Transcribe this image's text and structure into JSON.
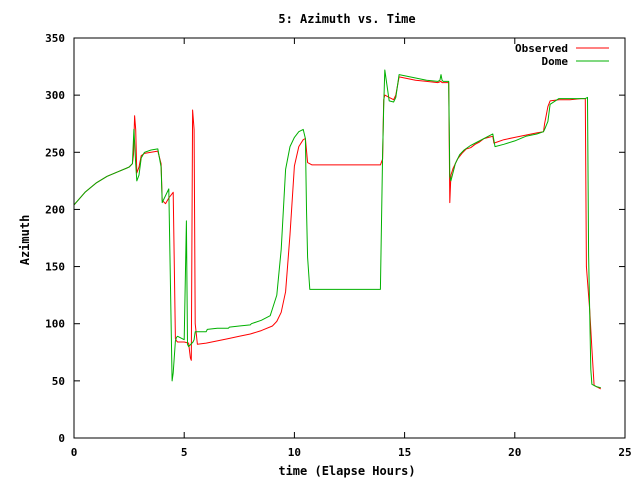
{
  "chart_data": {
    "type": "line",
    "title": "5: Azimuth vs. Time",
    "xlabel": "time (Elapse Hours)",
    "ylabel": "Azimuth",
    "xlim": [
      0,
      25
    ],
    "ylim": [
      0,
      350
    ],
    "xticks": [
      0,
      5,
      10,
      15,
      20,
      25
    ],
    "yticks": [
      0,
      50,
      100,
      150,
      200,
      250,
      300,
      350
    ],
    "grid": false,
    "legend_position": "top-right",
    "series": [
      {
        "name": "Observed",
        "color": "#ff0000",
        "x": [
          0.0,
          0.5,
          1.0,
          1.5,
          2.0,
          2.5,
          2.65,
          2.7,
          2.75,
          2.8,
          2.85,
          2.95,
          3.05,
          3.2,
          3.5,
          3.8,
          3.95,
          4.0,
          4.15,
          4.3,
          4.5,
          4.6,
          4.65,
          4.7,
          5.0,
          5.2,
          5.25,
          5.28,
          5.32,
          5.38,
          5.45,
          5.5,
          5.6,
          6.0,
          6.5,
          7.0,
          7.5,
          8.0,
          8.5,
          9.0,
          9.2,
          9.4,
          9.6,
          9.8,
          10.0,
          10.2,
          10.4,
          10.5,
          10.6,
          10.8,
          11.0,
          12.0,
          13.0,
          13.9,
          14.0,
          14.05,
          14.1,
          14.3,
          14.5,
          14.6,
          14.75,
          15.0,
          15.5,
          16.0,
          16.5,
          16.65,
          16.7,
          17.0,
          17.05,
          17.1,
          17.2,
          17.4,
          17.6,
          17.8,
          18.0,
          18.2,
          18.4,
          18.6,
          18.8,
          19.0,
          19.05,
          19.2,
          19.5,
          20.0,
          20.5,
          21.0,
          21.3,
          21.35,
          21.5,
          21.6,
          22.0,
          22.5,
          23.0,
          23.2,
          23.25,
          23.4,
          23.5,
          23.6,
          23.7,
          23.9
        ],
        "y": [
          204,
          215,
          223,
          229,
          233,
          237,
          240,
          248,
          282,
          270,
          232,
          237,
          247,
          249,
          250,
          251,
          240,
          208,
          205,
          210,
          215,
          87,
          85,
          84,
          84,
          83,
          75,
          70,
          68,
          287,
          270,
          100,
          82,
          83,
          85,
          87,
          89,
          91,
          94,
          98,
          102,
          110,
          128,
          178,
          238,
          255,
          261,
          262,
          241,
          239,
          239,
          239,
          239,
          239,
          244,
          296,
          300,
          298,
          296,
          300,
          316,
          315,
          313,
          312,
          311,
          312,
          311,
          311,
          206,
          230,
          236,
          244,
          249,
          253,
          254,
          257,
          259,
          262,
          263,
          264,
          258,
          259,
          261,
          263,
          265,
          267,
          268,
          275,
          290,
          295,
          296,
          296,
          297,
          297,
          150,
          112,
          78,
          46,
          45,
          43
        ]
      },
      {
        "name": "Dome",
        "color": "#00b000",
        "x": [
          0.0,
          0.5,
          1.0,
          1.5,
          2.0,
          2.5,
          2.65,
          2.72,
          2.8,
          2.85,
          2.95,
          3.05,
          3.2,
          3.5,
          3.8,
          3.95,
          4.0,
          4.1,
          4.3,
          4.45,
          4.5,
          4.6,
          4.65,
          4.7,
          5.0,
          5.1,
          5.15,
          5.2,
          5.4,
          5.45,
          5.5,
          6.0,
          6.05,
          6.5,
          7.0,
          7.05,
          7.5,
          8.0,
          8.05,
          8.5,
          8.9,
          9.0,
          9.2,
          9.4,
          9.6,
          9.8,
          10.0,
          10.2,
          10.4,
          10.5,
          10.55,
          10.6,
          10.7,
          10.8,
          11.0,
          12.0,
          13.0,
          13.9,
          14.0,
          14.05,
          14.1,
          14.3,
          14.5,
          14.6,
          14.75,
          15.0,
          15.5,
          16.0,
          16.5,
          16.6,
          16.65,
          16.7,
          16.75,
          17.0,
          17.05,
          17.1,
          17.3,
          17.5,
          17.7,
          18.0,
          18.3,
          18.6,
          18.9,
          19.0,
          19.1,
          19.5,
          20.0,
          20.5,
          21.0,
          21.3,
          21.35,
          21.5,
          21.6,
          22.0,
          22.5,
          23.0,
          23.2,
          23.3,
          23.35,
          23.45,
          23.5,
          23.6,
          23.7,
          23.9
        ],
        "y": [
          204,
          215,
          223,
          229,
          233,
          237,
          240,
          270,
          240,
          225,
          230,
          245,
          250,
          252,
          253,
          237,
          206,
          210,
          218,
          50,
          57,
          85,
          88,
          89,
          86,
          190,
          82,
          80,
          84,
          86,
          93,
          93,
          95,
          96,
          96,
          97,
          98,
          99,
          100,
          103,
          107,
          113,
          125,
          165,
          235,
          255,
          263,
          268,
          270,
          262,
          200,
          158,
          130,
          130,
          130,
          130,
          130,
          130,
          248,
          290,
          322,
          295,
          294,
          298,
          318,
          317,
          315,
          313,
          312,
          313,
          318,
          313,
          312,
          312,
          229,
          225,
          240,
          248,
          252,
          256,
          259,
          262,
          265,
          266,
          255,
          257,
          260,
          264,
          266,
          268,
          270,
          277,
          292,
          297,
          297,
          297,
          297,
          298,
          160,
          60,
          47,
          46,
          45,
          44
        ]
      }
    ]
  }
}
